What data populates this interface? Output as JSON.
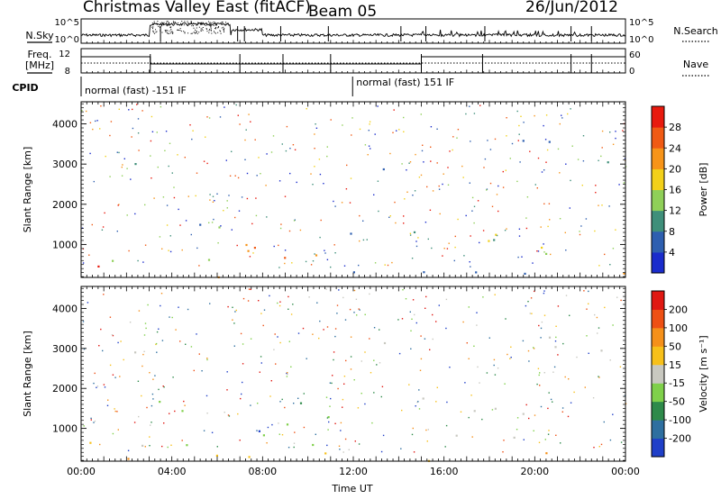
{
  "header": {
    "title": "Christmas Valley East (fitACF)",
    "beam": "Beam 05",
    "date": "26/Jun/2012"
  },
  "status_panels": {
    "nsky_label": "N.Sky",
    "nsearch_label": "N.Search",
    "nsky_ticks": [
      "10^5",
      "10^0"
    ],
    "nsearch_ticks": [
      "10^5",
      "10^0"
    ],
    "freq_label_1": "Freq.",
    "freq_label_2": "[MHz]",
    "freq_ticks": [
      "12",
      "8"
    ],
    "nave_label": "Nave",
    "nave_ticks": [
      "60",
      "0"
    ],
    "cpid_label": "CPID",
    "cpid_segments": [
      {
        "label": "normal (fast) -151 IF",
        "start_hour": 0,
        "end_hour": 11.97
      },
      {
        "label": "normal (fast) 151 IF",
        "start_hour": 11.97,
        "end_hour": 24
      }
    ]
  },
  "chart_data": [
    {
      "type": "heatmap",
      "name": "power",
      "ylabel": "Slant Range [km]",
      "y_ticks": [
        1000,
        2000,
        3000,
        4000
      ],
      "ylim": [
        180,
        4550
      ],
      "colorbar_label": "Power [dB]",
      "colorbar_ticks": [
        "4",
        "8",
        "12",
        "16",
        "20",
        "24",
        "28"
      ],
      "colorbar_colors": [
        "#1a2ccc",
        "#2e5fb0",
        "#3f8f7a",
        "#8fcf58",
        "#f2d01a",
        "#f79419",
        "#f05a14",
        "#e81a0e"
      ],
      "colorbar_range": [
        0,
        32
      ]
    },
    {
      "type": "heatmap",
      "name": "velocity",
      "ylabel": "Slant Range [km]",
      "y_ticks": [
        1000,
        2000,
        3000,
        4000
      ],
      "ylim": [
        180,
        4550
      ],
      "colorbar_label": "Velocity [m s⁻¹]",
      "colorbar_ticks": [
        "200",
        "100",
        "50",
        "15",
        "-15",
        "-50",
        "-100",
        "-200"
      ],
      "colorbar_colors": [
        "#1f3fc8",
        "#2e6fa0",
        "#2e8a4a",
        "#7fd04a",
        "#c8c8c0",
        "#f7c01a",
        "#f5901a",
        "#ee5014",
        "#e01812"
      ]
    }
  ],
  "x_axis": {
    "label": "Time UT",
    "ticks": [
      "00:00",
      "04:00",
      "08:00",
      "12:00",
      "16:00",
      "20:00",
      "00:00"
    ],
    "tick_hours": [
      0,
      4,
      8,
      12,
      16,
      20,
      24
    ]
  }
}
